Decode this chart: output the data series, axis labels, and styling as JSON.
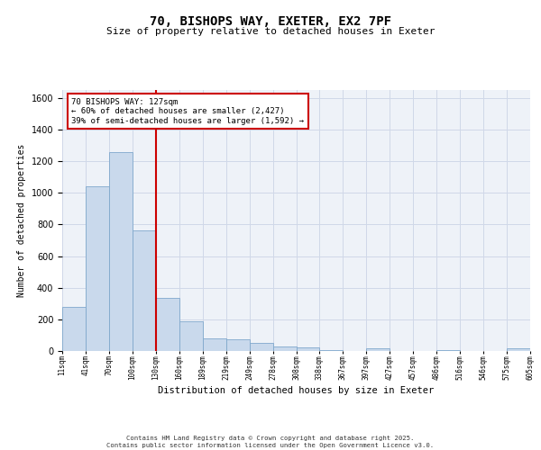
{
  "title1": "70, BISHOPS WAY, EXETER, EX2 7PF",
  "title2": "Size of property relative to detached houses in Exeter",
  "xlabel": "Distribution of detached houses by size in Exeter",
  "ylabel": "Number of detached properties",
  "annotation_line1": "70 BISHOPS WAY: 127sqm",
  "annotation_line2": "← 60% of detached houses are smaller (2,427)",
  "annotation_line3": "39% of semi-detached houses are larger (1,592) →",
  "bar_values": [
    280,
    1040,
    1260,
    760,
    335,
    190,
    80,
    75,
    50,
    30,
    20,
    5,
    0,
    15,
    0,
    0,
    5,
    0,
    0,
    15
  ],
  "x_labels": [
    "11sqm",
    "41sqm",
    "70sqm",
    "100sqm",
    "130sqm",
    "160sqm",
    "189sqm",
    "219sqm",
    "249sqm",
    "278sqm",
    "308sqm",
    "338sqm",
    "367sqm",
    "397sqm",
    "427sqm",
    "457sqm",
    "486sqm",
    "516sqm",
    "546sqm",
    "575sqm",
    "605sqm"
  ],
  "bar_color": "#c9d9ec",
  "bar_edge_color": "#7fa8cc",
  "vline_color": "#cc0000",
  "ylim": [
    0,
    1650
  ],
  "yticks": [
    0,
    200,
    400,
    600,
    800,
    1000,
    1200,
    1400,
    1600
  ],
  "annotation_box_color": "#cc0000",
  "grid_color": "#d0d8e8",
  "bg_color": "#eef2f8",
  "footer1": "Contains HM Land Registry data © Crown copyright and database right 2025.",
  "footer2": "Contains public sector information licensed under the Open Government Licence v3.0."
}
